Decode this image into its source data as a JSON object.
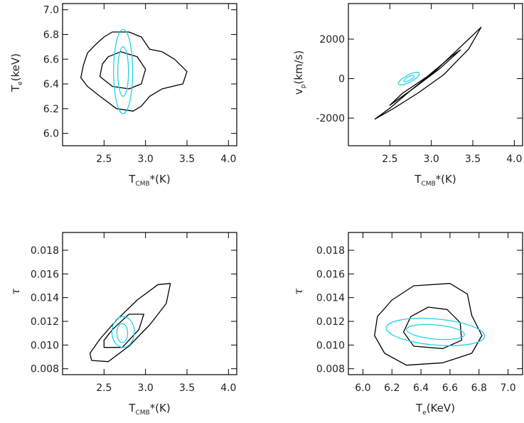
{
  "colors": {
    "data_contour": "#000000",
    "model_contour": "#22d3e6",
    "frame": "#000000"
  },
  "chart_data": [
    {
      "type": "contour",
      "xlabel": {
        "main": "T",
        "sub": "CMB",
        "tail": "*(K)"
      },
      "ylabel": {
        "main": "T",
        "sub": "e",
        "tail": "(keV)"
      },
      "xlim": [
        2.0,
        4.1
      ],
      "ylim": [
        5.9,
        7.05
      ],
      "xticks": [
        2.5,
        3.0,
        3.5,
        4.0
      ],
      "xtick_labels": [
        "2.5",
        "3.0",
        "3.5",
        "4.0"
      ],
      "yticks": [
        6.0,
        6.2,
        6.4,
        6.6,
        6.8,
        7.0
      ],
      "ytick_labels": [
        "6.0",
        "6.2",
        "6.4",
        "6.6",
        "6.8",
        "7.0"
      ],
      "series": [
        {
          "role": "data_outer",
          "color": "black",
          "points": [
            [
              2.5,
              6.78
            ],
            [
              2.6,
              6.82
            ],
            [
              2.8,
              6.82
            ],
            [
              2.95,
              6.78
            ],
            [
              3.05,
              6.68
            ],
            [
              3.2,
              6.66
            ],
            [
              3.35,
              6.6
            ],
            [
              3.5,
              6.5
            ],
            [
              3.45,
              6.4
            ],
            [
              3.2,
              6.36
            ],
            [
              3.05,
              6.3
            ],
            [
              2.95,
              6.22
            ],
            [
              2.85,
              6.18
            ],
            [
              2.65,
              6.2
            ],
            [
              2.45,
              6.3
            ],
            [
              2.3,
              6.38
            ],
            [
              2.22,
              6.45
            ],
            [
              2.25,
              6.55
            ],
            [
              2.3,
              6.65
            ],
            [
              2.4,
              6.72
            ],
            [
              2.5,
              6.78
            ]
          ]
        },
        {
          "role": "data_inner",
          "color": "black",
          "points": [
            [
              2.55,
              6.62
            ],
            [
              2.7,
              6.66
            ],
            [
              2.9,
              6.62
            ],
            [
              3.0,
              6.52
            ],
            [
              2.95,
              6.4
            ],
            [
              2.8,
              6.36
            ],
            [
              2.6,
              6.38
            ],
            [
              2.45,
              6.46
            ],
            [
              2.48,
              6.56
            ],
            [
              2.55,
              6.62
            ]
          ]
        },
        {
          "role": "model_outer",
          "color": "cyan",
          "ellipse": {
            "cx": 2.73,
            "cy": 6.5,
            "rx": 0.115,
            "ry": 0.34
          }
        },
        {
          "role": "model_inner",
          "color": "cyan",
          "ellipse": {
            "cx": 2.73,
            "cy": 6.5,
            "rx": 0.065,
            "ry": 0.2
          }
        }
      ]
    },
    {
      "type": "contour",
      "xlabel": {
        "main": "T",
        "sub": "CMB",
        "tail": "*(K)"
      },
      "ylabel": {
        "main": "v",
        "sub": "p",
        "tail": "(km/s)"
      },
      "xlim": [
        2.0,
        4.1
      ],
      "ylim": [
        -3400,
        3800
      ],
      "xticks": [
        2.5,
        3.0,
        3.5,
        4.0
      ],
      "xtick_labels": [
        "2.5",
        "3.0",
        "3.5",
        "4.0"
      ],
      "yticks": [
        -2000,
        0,
        2000
      ],
      "ytick_labels": [
        "-2000",
        "0",
        "2000"
      ],
      "series": [
        {
          "role": "data_outer",
          "color": "black",
          "points": [
            [
              2.32,
              -2050
            ],
            [
              2.55,
              -1500
            ],
            [
              2.85,
              -700
            ],
            [
              3.15,
              200
            ],
            [
              3.45,
              1500
            ],
            [
              3.6,
              2600
            ],
            [
              3.35,
              1600
            ],
            [
              3.05,
              400
            ],
            [
              2.75,
              -600
            ],
            [
              2.5,
              -1500
            ],
            [
              2.32,
              -2050
            ]
          ]
        },
        {
          "role": "data_inner",
          "color": "black",
          "points": [
            [
              2.5,
              -1350
            ],
            [
              2.8,
              -450
            ],
            [
              3.1,
              500
            ],
            [
              3.35,
              1450
            ],
            [
              3.25,
              1150
            ],
            [
              2.95,
              100
            ],
            [
              2.65,
              -750
            ],
            [
              2.5,
              -1350
            ]
          ]
        },
        {
          "role": "model_outer",
          "color": "cyan",
          "ellipse": {
            "cx": 2.73,
            "cy": 0,
            "rx": 0.14,
            "ry": 180,
            "rotate_deg": -28
          }
        },
        {
          "role": "model_inner",
          "color": "cyan",
          "ellipse": {
            "cx": 2.73,
            "cy": 0,
            "rx": 0.07,
            "ry": 90,
            "rotate_deg": -28
          }
        }
      ]
    },
    {
      "type": "contour",
      "xlabel": {
        "main": "T",
        "sub": "CMB",
        "tail": "*(K)"
      },
      "ylabel": {
        "main": "τ",
        "sub": "",
        "tail": ""
      },
      "xlim": [
        2.0,
        4.1
      ],
      "ylim": [
        0.0075,
        0.0195
      ],
      "xticks": [
        2.5,
        3.0,
        3.5,
        4.0
      ],
      "xtick_labels": [
        "2.5",
        "3.0",
        "3.5",
        "4.0"
      ],
      "yticks": [
        0.008,
        0.01,
        0.012,
        0.014,
        0.016,
        0.018
      ],
      "ytick_labels": [
        "0.008",
        "0.010",
        "0.012",
        "0.014",
        "0.016",
        "0.018"
      ],
      "series": [
        {
          "role": "data_outer",
          "color": "black",
          "points": [
            [
              2.35,
              0.0087
            ],
            [
              2.55,
              0.0086
            ],
            [
              2.8,
              0.0099
            ],
            [
              3.05,
              0.0117
            ],
            [
              3.25,
              0.0135
            ],
            [
              3.3,
              0.0152
            ],
            [
              3.15,
              0.0151
            ],
            [
              2.9,
              0.0138
            ],
            [
              2.65,
              0.0121
            ],
            [
              2.45,
              0.0105
            ],
            [
              2.33,
              0.0093
            ],
            [
              2.35,
              0.0087
            ]
          ]
        },
        {
          "role": "data_inner",
          "color": "black",
          "points": [
            [
              2.5,
              0.0098
            ],
            [
              2.72,
              0.0098
            ],
            [
              2.92,
              0.0113
            ],
            [
              2.98,
              0.0126
            ],
            [
              2.8,
              0.0126
            ],
            [
              2.6,
              0.0113
            ],
            [
              2.5,
              0.0104
            ],
            [
              2.5,
              0.0098
            ]
          ]
        },
        {
          "role": "model_outer",
          "color": "cyan",
          "ellipse": {
            "cx": 2.73,
            "cy": 0.0111,
            "rx": 0.135,
            "ry": 0.0013
          }
        },
        {
          "role": "model_inner",
          "color": "cyan",
          "ellipse": {
            "cx": 2.72,
            "cy": 0.011,
            "rx": 0.065,
            "ry": 0.0008
          }
        }
      ]
    },
    {
      "type": "contour",
      "xlabel": {
        "main": "T",
        "sub": "e",
        "tail": "(KeV)"
      },
      "ylabel": {
        "main": "τ",
        "sub": "",
        "tail": ""
      },
      "xlim": [
        5.9,
        7.1
      ],
      "ylim": [
        0.0075,
        0.0195
      ],
      "xticks": [
        6.0,
        6.2,
        6.4,
        6.6,
        6.8,
        7.0
      ],
      "xtick_labels": [
        "6.0",
        "6.2",
        "6.4",
        "6.6",
        "6.8",
        "7.0"
      ],
      "yticks": [
        0.008,
        0.01,
        0.012,
        0.014,
        0.016,
        0.018
      ],
      "ytick_labels": [
        "0.008",
        "0.010",
        "0.012",
        "0.014",
        "0.016",
        "0.018"
      ],
      "series": [
        {
          "role": "data_outer",
          "color": "black",
          "points": [
            [
              6.3,
              0.0083
            ],
            [
              6.55,
              0.0085
            ],
            [
              6.75,
              0.0093
            ],
            [
              6.82,
              0.0108
            ],
            [
              6.75,
              0.0125
            ],
            [
              6.72,
              0.0143
            ],
            [
              6.6,
              0.0152
            ],
            [
              6.35,
              0.015
            ],
            [
              6.2,
              0.0138
            ],
            [
              6.1,
              0.0124
            ],
            [
              6.08,
              0.0108
            ],
            [
              6.15,
              0.0093
            ],
            [
              6.3,
              0.0083
            ]
          ]
        },
        {
          "role": "data_inner",
          "color": "black",
          "points": [
            [
              6.35,
              0.0099
            ],
            [
              6.55,
              0.0097
            ],
            [
              6.68,
              0.0104
            ],
            [
              6.67,
              0.0119
            ],
            [
              6.58,
              0.013
            ],
            [
              6.45,
              0.0132
            ],
            [
              6.33,
              0.0124
            ],
            [
              6.28,
              0.0111
            ],
            [
              6.35,
              0.0099
            ]
          ]
        },
        {
          "role": "model_outer",
          "color": "cyan",
          "ellipse": {
            "cx": 6.5,
            "cy": 0.0111,
            "rx": 0.34,
            "ry": 0.0011,
            "rotate_deg": 5
          }
        },
        {
          "role": "model_inner",
          "color": "cyan",
          "ellipse": {
            "cx": 6.5,
            "cy": 0.0111,
            "rx": 0.2,
            "ry": 0.0006,
            "rotate_deg": 5
          }
        }
      ]
    }
  ]
}
